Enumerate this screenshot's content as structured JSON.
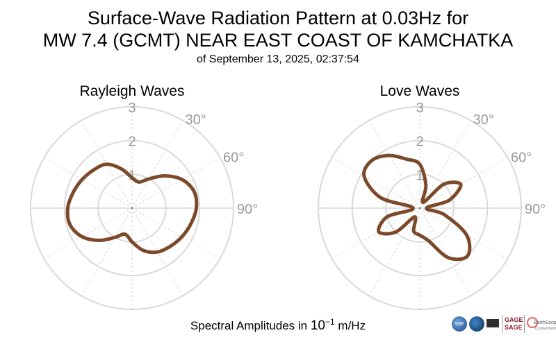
{
  "title": {
    "line1": "Surface-Wave Radiation Pattern at 0.03Hz for",
    "line2": "MW 7.4 (GCMT) NEAR EAST COAST OF KAMCHATKA",
    "line3": "of September 13, 2025, 02:37:54"
  },
  "footer": {
    "prefix": "Spectral Amplitudes in",
    "base": "10",
    "exponent": "−1",
    "unit": "m/Hz"
  },
  "logos": {
    "nsf": "NSF",
    "gage": "GAGE",
    "sage": "SAGE",
    "earthscope": "EarthScope",
    "consortium": "Consortium"
  },
  "colors": {
    "pattern": "#7b4a2a",
    "grid": "#d9d9d9",
    "tick_label": "#9a9a9a"
  },
  "chart_data": [
    {
      "type": "polar-line",
      "title": "Rayleigh Waves",
      "r_ticks": [
        1,
        2,
        3
      ],
      "r_tick_labels": [
        "1",
        "2",
        "3"
      ],
      "r_lim": [
        0,
        3
      ],
      "angle_tick_labels": [
        "30°",
        "60°",
        "90°"
      ],
      "angle_ticks_deg": [
        30,
        60,
        90
      ],
      "angular_gridlines_deg": [
        0,
        30,
        60,
        90,
        120,
        150,
        180,
        210,
        240,
        270,
        300,
        330
      ],
      "orientation": "clockwise from north",
      "theta_deg": [
        0,
        15,
        30,
        45,
        60,
        75,
        90,
        105,
        120,
        135,
        150,
        165,
        180,
        195,
        210,
        225,
        240,
        255,
        270,
        285,
        300,
        315,
        330,
        345
      ],
      "r": [
        0.9,
        0.8,
        1.0,
        1.35,
        1.7,
        1.9,
        1.9,
        1.8,
        1.7,
        1.6,
        1.5,
        1.3,
        1.0,
        0.8,
        1.0,
        1.35,
        1.7,
        1.9,
        1.9,
        1.8,
        1.7,
        1.6,
        1.5,
        1.2
      ]
    },
    {
      "type": "polar-line",
      "title": "Love Waves",
      "r_ticks": [
        1,
        2,
        3
      ],
      "r_tick_labels": [
        "1",
        "2",
        "3"
      ],
      "r_lim": [
        0,
        3
      ],
      "angle_tick_labels": [
        "30°",
        "60°",
        "90°"
      ],
      "angle_ticks_deg": [
        30,
        60,
        90
      ],
      "angular_gridlines_deg": [
        0,
        30,
        60,
        90,
        120,
        150,
        180,
        210,
        240,
        270,
        300,
        330
      ],
      "orientation": "clockwise from north",
      "theta_deg": [
        0,
        15,
        30,
        45,
        60,
        75,
        90,
        105,
        120,
        135,
        150,
        165,
        180,
        195,
        210,
        225,
        240,
        255,
        270,
        285,
        300,
        315,
        330,
        345
      ],
      "r": [
        1.3,
        0.7,
        0.2,
        1.0,
        1.4,
        0.9,
        0.2,
        0.75,
        1.6,
        2.0,
        1.7,
        1.0,
        0.8,
        0.7,
        0.3,
        1.0,
        1.4,
        1.0,
        0.2,
        1.2,
        1.9,
        2.0,
        1.8,
        1.5
      ]
    }
  ]
}
